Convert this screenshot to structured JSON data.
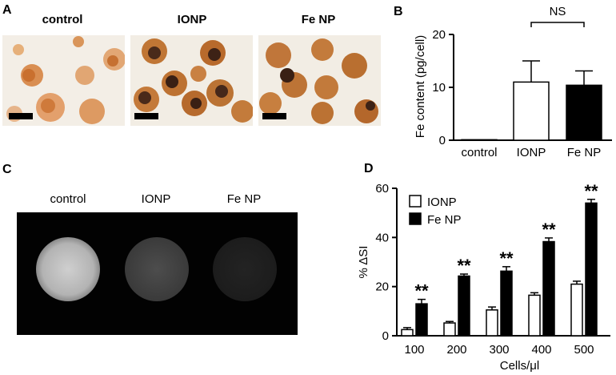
{
  "panels": {
    "a": {
      "letter": "A",
      "photo_labels": [
        "control",
        "IONP",
        "Fe NP"
      ]
    },
    "c": {
      "letter": "C",
      "image_labels": [
        "control",
        "IONP",
        "Fe NP"
      ]
    },
    "b_letter": "B",
    "d_letter": "D"
  },
  "chart_data": [
    {
      "panel": "B",
      "type": "bar",
      "categories": [
        "control",
        "IONP",
        "Fe NP"
      ],
      "values": [
        0.1,
        11.0,
        10.4
      ],
      "errors": [
        0.0,
        4.0,
        2.7
      ],
      "bar_colors": [
        "#ffffff",
        "#ffffff",
        "#000000"
      ],
      "ylabel": "Fe content (pg/cell)",
      "ylim": [
        0,
        20
      ],
      "yticks": [
        0,
        10,
        20
      ],
      "annotation": "NS"
    },
    {
      "panel": "D",
      "type": "bar",
      "categories": [
        "100",
        "200",
        "300",
        "400",
        "500"
      ],
      "series": [
        {
          "name": "IONP",
          "values": [
            2.5,
            5.2,
            10.5,
            16.5,
            21.0
          ],
          "errors": [
            0.8,
            0.6,
            1.2,
            1.0,
            1.2
          ],
          "color": "#ffffff"
        },
        {
          "name": "Fe NP",
          "values": [
            13.0,
            24.3,
            26.3,
            38.3,
            54.0
          ],
          "errors": [
            1.8,
            0.8,
            1.8,
            1.5,
            1.5
          ],
          "color": "#000000"
        }
      ],
      "significance": [
        "**",
        "**",
        "**",
        "**",
        "**"
      ],
      "xlabel": "Cells/μl",
      "ylabel": "% ΔSI",
      "ylim": [
        0,
        60
      ],
      "yticks": [
        0,
        20,
        40,
        60
      ],
      "legend": "top-left"
    }
  ]
}
